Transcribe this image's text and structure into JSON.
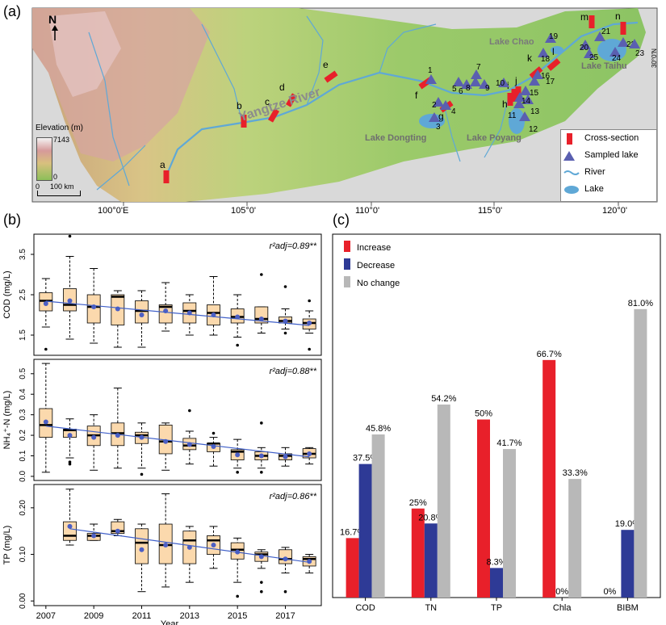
{
  "panels": {
    "a": "(a)",
    "b": "(b)",
    "c": "(c)"
  },
  "map": {
    "north": "N",
    "elevation_title": "Elevation (m)",
    "elevation_max": "7143",
    "elevation_min": "0",
    "scale_zero": "0",
    "scale_label": "100 km",
    "river_name": "Yangtze River",
    "lakes": [
      "Lake Chao",
      "Lake Taihu",
      "Lake Dongting",
      "Lake Poyang"
    ],
    "cross_sections": [
      "a",
      "b",
      "c",
      "d",
      "e",
      "f",
      "g",
      "h",
      "i",
      "j",
      "k",
      "l",
      "m",
      "n"
    ],
    "sampled_lakes": [
      "1",
      "2",
      "3",
      "4",
      "5",
      "6",
      "7",
      "8",
      "9",
      "10",
      "11",
      "12",
      "13",
      "14",
      "15",
      "16",
      "17",
      "18",
      "19",
      "20",
      "21",
      "22",
      "23",
      "24",
      "25"
    ],
    "longitudes": [
      "100°0'E",
      "105°0'",
      "110°0'",
      "115°0'",
      "120°0'"
    ],
    "edge_label": "30°0'N",
    "legend": [
      "Cross-section",
      "Sampled lake",
      "River",
      "Lake"
    ],
    "colors": {
      "cross_section": "#e8202a",
      "sampled_lake": "#5a5fb0",
      "river": "#5fa8d6",
      "lake": "#5fa8d6"
    }
  },
  "chart_data": [
    {
      "type": "box",
      "ylabel": "COD (mg/L)",
      "annotation": "r²adj=0.89**",
      "yticks": [
        "1.5",
        "2.5",
        "3.5"
      ],
      "ylim": [
        1.0,
        4.0
      ],
      "x": [
        2007,
        2008,
        2009,
        2010,
        2011,
        2012,
        2013,
        2014,
        2015,
        2016,
        2017,
        2018
      ],
      "box": [
        {
          "min": 1.7,
          "q1": 2.1,
          "median": 2.35,
          "q3": 2.55,
          "max": 2.9,
          "mean": 2.28,
          "outliers": [
            1.15
          ]
        },
        {
          "min": 1.4,
          "q1": 2.1,
          "median": 2.25,
          "q3": 2.65,
          "max": 3.45,
          "mean": 2.35,
          "outliers": [
            3.95
          ]
        },
        {
          "min": 1.3,
          "q1": 1.8,
          "median": 2.2,
          "q3": 2.5,
          "max": 3.15,
          "mean": 2.2,
          "outliers": []
        },
        {
          "min": 1.2,
          "q1": 1.75,
          "median": 2.45,
          "q3": 2.5,
          "max": 2.6,
          "mean": 2.15,
          "outliers": []
        },
        {
          "min": 1.2,
          "q1": 1.8,
          "median": 2.1,
          "q3": 2.35,
          "max": 2.6,
          "mean": 2.0,
          "outliers": []
        },
        {
          "min": 1.6,
          "q1": 1.8,
          "median": 2.2,
          "q3": 2.25,
          "max": 2.8,
          "mean": 2.1,
          "outliers": []
        },
        {
          "min": 1.5,
          "q1": 1.8,
          "median": 2.1,
          "q3": 2.3,
          "max": 2.5,
          "mean": 2.05,
          "outliers": []
        },
        {
          "min": 1.5,
          "q1": 1.75,
          "median": 2.05,
          "q3": 2.25,
          "max": 2.95,
          "mean": 2.0,
          "outliers": []
        },
        {
          "min": 1.45,
          "q1": 1.8,
          "median": 1.95,
          "q3": 2.15,
          "max": 2.5,
          "mean": 1.95,
          "outliers": [
            1.25
          ]
        },
        {
          "min": 1.55,
          "q1": 1.8,
          "median": 1.9,
          "q3": 2.2,
          "max": 2.2,
          "mean": 1.9,
          "outliers": [
            3.0
          ]
        },
        {
          "min": 1.65,
          "q1": 1.8,
          "median": 1.85,
          "q3": 1.95,
          "max": 2.15,
          "mean": 1.85,
          "outliers": [
            2.7,
            1.55
          ]
        },
        {
          "min": 1.55,
          "q1": 1.65,
          "median": 1.8,
          "q3": 1.9,
          "max": 2.1,
          "mean": 1.8,
          "outliers": [
            2.35,
            1.15
          ]
        }
      ],
      "trend": [
        2.34,
        1.74
      ]
    },
    {
      "type": "box",
      "ylabel": "NH₄⁺-N (mg/L)",
      "annotation": "r²adj=0.88**",
      "yticks": [
        "0.0",
        "0.1",
        "0.2",
        "0.3",
        "0.4",
        "0.5"
      ],
      "ylim": [
        -0.02,
        0.57
      ],
      "x": [
        2007,
        2008,
        2009,
        2010,
        2011,
        2012,
        2013,
        2014,
        2015,
        2016,
        2017,
        2018
      ],
      "box": [
        {
          "min": 0.02,
          "q1": 0.19,
          "median": 0.25,
          "q3": 0.33,
          "max": 0.55,
          "mean": 0.265,
          "outliers": []
        },
        {
          "min": 0.09,
          "q1": 0.19,
          "median": 0.225,
          "q3": 0.23,
          "max": 0.28,
          "mean": 0.2,
          "outliers": [
            0.07,
            0.06
          ]
        },
        {
          "min": 0.03,
          "q1": 0.15,
          "median": 0.2,
          "q3": 0.245,
          "max": 0.3,
          "mean": 0.19,
          "outliers": []
        },
        {
          "min": 0.04,
          "q1": 0.15,
          "median": 0.21,
          "q3": 0.26,
          "max": 0.43,
          "mean": 0.2,
          "outliers": []
        },
        {
          "min": 0.04,
          "q1": 0.16,
          "median": 0.2,
          "q3": 0.215,
          "max": 0.26,
          "mean": 0.19,
          "outliers": [
            0.01
          ]
        },
        {
          "min": 0.03,
          "q1": 0.11,
          "median": 0.17,
          "q3": 0.25,
          "max": 0.26,
          "mean": 0.17,
          "outliers": []
        },
        {
          "min": 0.06,
          "q1": 0.13,
          "median": 0.15,
          "q3": 0.185,
          "max": 0.22,
          "mean": 0.155,
          "outliers": [
            0.32
          ]
        },
        {
          "min": 0.05,
          "q1": 0.12,
          "median": 0.16,
          "q3": 0.16,
          "max": 0.19,
          "mean": 0.145,
          "outliers": [
            0.21
          ]
        },
        {
          "min": 0.04,
          "q1": 0.08,
          "median": 0.12,
          "q3": 0.13,
          "max": 0.18,
          "mean": 0.105,
          "outliers": [
            0.02
          ]
        },
        {
          "min": 0.04,
          "q1": 0.08,
          "median": 0.1,
          "q3": 0.12,
          "max": 0.14,
          "mean": 0.1,
          "outliers": [
            0.26,
            0.02
          ]
        },
        {
          "min": 0.05,
          "q1": 0.08,
          "median": 0.1,
          "q3": 0.11,
          "max": 0.14,
          "mean": 0.095,
          "outliers": []
        },
        {
          "min": 0.06,
          "q1": 0.09,
          "median": 0.11,
          "q3": 0.135,
          "max": 0.14,
          "mean": 0.11,
          "outliers": []
        }
      ],
      "trend": [
        0.245,
        0.095
      ]
    },
    {
      "type": "box",
      "ylabel": "TP (mg/L)",
      "annotation": "r²adj=0.86**",
      "yticks": [
        "0.00",
        "0.10",
        "0.20"
      ],
      "ylim": [
        -0.01,
        0.25
      ],
      "x": [
        2008,
        2009,
        2010,
        2011,
        2012,
        2013,
        2014,
        2015,
        2016,
        2017,
        2018
      ],
      "box": [
        {
          "min": 0.12,
          "q1": 0.13,
          "median": 0.14,
          "q3": 0.17,
          "max": 0.24,
          "mean": 0.16,
          "outliers": []
        },
        {
          "min": 0.13,
          "q1": 0.13,
          "median": 0.14,
          "q3": 0.145,
          "max": 0.165,
          "mean": 0.14,
          "outliers": []
        },
        {
          "min": 0.14,
          "q1": 0.145,
          "median": 0.15,
          "q3": 0.17,
          "max": 0.175,
          "mean": 0.15,
          "outliers": []
        },
        {
          "min": 0.02,
          "q1": 0.08,
          "median": 0.125,
          "q3": 0.155,
          "max": 0.165,
          "mean": 0.11,
          "outliers": []
        },
        {
          "min": 0.03,
          "q1": 0.08,
          "median": 0.12,
          "q3": 0.165,
          "max": 0.23,
          "mean": 0.12,
          "outliers": []
        },
        {
          "min": 0.04,
          "q1": 0.08,
          "median": 0.13,
          "q3": 0.15,
          "max": 0.16,
          "mean": 0.115,
          "outliers": []
        },
        {
          "min": 0.07,
          "q1": 0.1,
          "median": 0.13,
          "q3": 0.14,
          "max": 0.16,
          "mean": 0.12,
          "outliers": []
        },
        {
          "min": 0.04,
          "q1": 0.09,
          "median": 0.11,
          "q3": 0.125,
          "max": 0.135,
          "mean": 0.105,
          "outliers": [
            0.01
          ]
        },
        {
          "min": 0.07,
          "q1": 0.085,
          "median": 0.1,
          "q3": 0.105,
          "max": 0.11,
          "mean": 0.095,
          "outliers": [
            0.04,
            0.02
          ]
        },
        {
          "min": 0.06,
          "q1": 0.08,
          "median": 0.09,
          "q3": 0.11,
          "max": 0.115,
          "mean": 0.09,
          "outliers": [
            0.02
          ]
        },
        {
          "min": 0.06,
          "q1": 0.075,
          "median": 0.09,
          "q3": 0.095,
          "max": 0.1,
          "mean": 0.085,
          "outliers": []
        }
      ],
      "trend": [
        0.155,
        0.083
      ]
    },
    {
      "type": "bar",
      "categories": [
        "COD",
        "TN",
        "TP",
        "Chla",
        "BIBM"
      ],
      "series": [
        {
          "name": "Increase",
          "values": [
            16.7,
            25,
            50,
            66.7,
            0
          ],
          "labels": [
            "16.7%",
            "25%",
            "50%",
            "66.7%",
            ""
          ],
          "color": "#e8202a"
        },
        {
          "name": "Decrease",
          "values": [
            37.5,
            20.8,
            8.3,
            0,
            19.0
          ],
          "labels": [
            "37.5%",
            "20.8%",
            "8.3%",
            "0%",
            "19.0%"
          ],
          "color": "#2e3a96"
        },
        {
          "name": "No change",
          "values": [
            45.8,
            54.2,
            41.7,
            33.3,
            81.0
          ],
          "labels": [
            "45.8%",
            "54.2%",
            "41.7%",
            "33.3%",
            "81.0%"
          ],
          "color": "#b8b8b8"
        }
      ],
      "extra_label": "0%",
      "ylim": [
        0,
        100
      ],
      "legend_position": "top-left"
    }
  ],
  "panel_b_xaxis": {
    "ticks": [
      "2007",
      "2009",
      "2011",
      "2013",
      "2015",
      "2017"
    ],
    "xlabel": "Year"
  }
}
